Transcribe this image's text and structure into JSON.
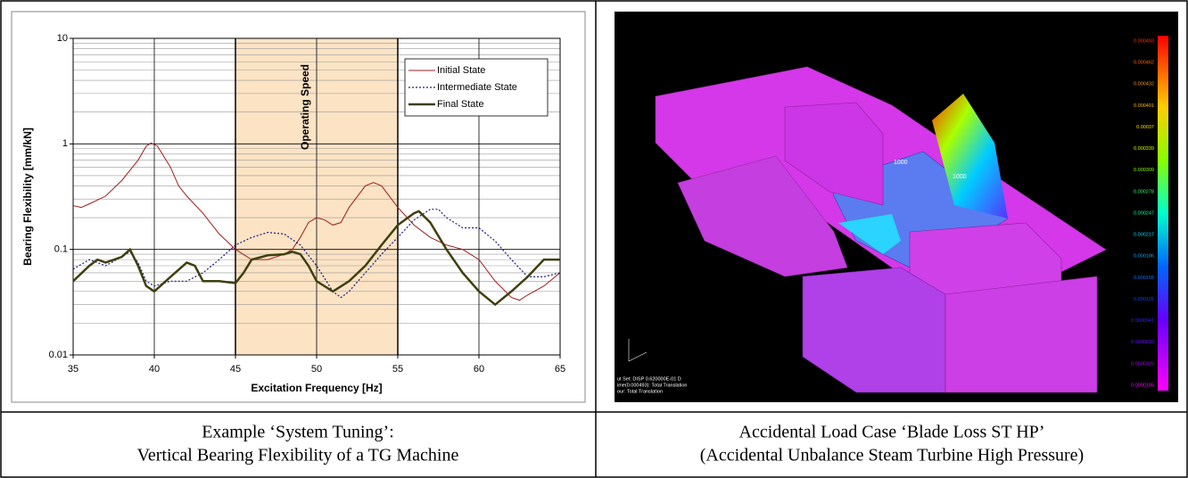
{
  "chart_data": {
    "type": "line",
    "xlabel": "Excitation Frequency   [Hz]",
    "ylabel": "Bearing Flexibility   [mm/kN]",
    "xlim": [
      35,
      65
    ],
    "xticks": [
      35,
      40,
      45,
      50,
      55,
      60,
      65
    ],
    "ylim": [
      0.01,
      10
    ],
    "yticks": [
      0.01,
      0.1,
      1,
      10
    ],
    "log_y": true,
    "yminorticks": [
      0.02,
      0.03,
      0.04,
      0.05,
      0.06,
      0.07,
      0.08,
      0.09,
      0.2,
      0.3,
      0.4,
      0.5,
      0.6,
      0.7,
      0.8,
      0.9,
      2,
      3,
      4,
      5,
      6,
      7,
      8,
      9
    ],
    "grid": true,
    "legend": "upper right",
    "band": {
      "from": 45,
      "to": 55,
      "label": "Operating Speed",
      "color": "#fbe3c4"
    },
    "series": [
      {
        "name": "Initial State",
        "color": "#a01c1c",
        "linewidth": 1,
        "style": "solid",
        "x": [
          35,
          35.5,
          36,
          37,
          38,
          39,
          39.5,
          39.8,
          40.2,
          41,
          41.5,
          42,
          43,
          44,
          45,
          46,
          46.5,
          47,
          48,
          48.5,
          49,
          49.5,
          50,
          50.5,
          51,
          51.5,
          52,
          53,
          53.5,
          54,
          55,
          56,
          57,
          58,
          59,
          60,
          61,
          62,
          62.5,
          63,
          64,
          65
        ],
        "values": [
          0.26,
          0.25,
          0.27,
          0.32,
          0.45,
          0.7,
          0.95,
          1.02,
          0.95,
          0.6,
          0.4,
          0.32,
          0.22,
          0.14,
          0.1,
          0.08,
          0.08,
          0.08,
          0.09,
          0.1,
          0.13,
          0.18,
          0.2,
          0.19,
          0.17,
          0.18,
          0.25,
          0.4,
          0.43,
          0.4,
          0.25,
          0.17,
          0.13,
          0.11,
          0.1,
          0.08,
          0.05,
          0.035,
          0.033,
          0.037,
          0.045,
          0.06
        ]
      },
      {
        "name": "Intermediate State",
        "color": "#1a1a80",
        "linewidth": 1.2,
        "style": "dotted",
        "x": [
          35,
          36,
          37,
          38,
          38.5,
          39,
          39.5,
          40,
          41,
          42,
          43,
          44,
          45,
          46,
          47,
          48,
          49,
          50,
          51,
          51.5,
          52,
          53,
          54,
          55,
          56,
          57,
          57.5,
          58,
          59,
          60,
          61,
          62,
          63,
          64,
          65
        ],
        "values": [
          0.065,
          0.08,
          0.07,
          0.085,
          0.095,
          0.075,
          0.05,
          0.045,
          0.05,
          0.05,
          0.06,
          0.08,
          0.11,
          0.13,
          0.145,
          0.14,
          0.11,
          0.07,
          0.04,
          0.035,
          0.04,
          0.06,
          0.09,
          0.13,
          0.19,
          0.24,
          0.24,
          0.2,
          0.16,
          0.16,
          0.12,
          0.08,
          0.055,
          0.055,
          0.06
        ]
      },
      {
        "name": "Final State",
        "color": "#3f3f10",
        "linewidth": 2.5,
        "style": "solid",
        "x": [
          35,
          36,
          36.5,
          37,
          38,
          38.5,
          39,
          39.5,
          40,
          41,
          42,
          42.5,
          43,
          44,
          45,
          45.5,
          46,
          47,
          48,
          48.5,
          49,
          49.5,
          50,
          51,
          52,
          53,
          54,
          55,
          56,
          56.3,
          57,
          58,
          59,
          60,
          61,
          62,
          63,
          64,
          65
        ],
        "values": [
          0.05,
          0.07,
          0.08,
          0.075,
          0.085,
          0.1,
          0.07,
          0.045,
          0.04,
          0.055,
          0.075,
          0.07,
          0.05,
          0.05,
          0.048,
          0.06,
          0.08,
          0.088,
          0.09,
          0.095,
          0.09,
          0.07,
          0.05,
          0.04,
          0.05,
          0.07,
          0.11,
          0.17,
          0.22,
          0.23,
          0.18,
          0.1,
          0.06,
          0.04,
          0.03,
          0.04,
          0.055,
          0.08,
          0.08
        ]
      }
    ]
  },
  "image": {
    "colorbar": [
      "0.000493",
      "0.000462",
      "0.000432",
      "0.000401",
      "0.00037",
      "0.000339",
      "0.000309",
      "0.000278",
      "0.000247",
      "0.000217",
      "0.000186",
      "0.000155",
      "0.000125",
      "0.0000941",
      "0.0000633",
      "0.0000325",
      "0.0000185"
    ],
    "labels": [
      "1000",
      "1000"
    ],
    "info": [
      "ut Set: DISP   0.620000E-01   D",
      "ime(0.000493): Total Translation",
      "our: Total Translation"
    ]
  },
  "captions": [
    [
      "Example ‘System Tuning’:",
      "Vertical Bearing Flexibility of a TG Machine"
    ],
    [
      "Accidental Load Case ‘Blade Loss ST HP’",
      "(Accidental Unbalance Steam Turbine High Pressure)"
    ]
  ]
}
